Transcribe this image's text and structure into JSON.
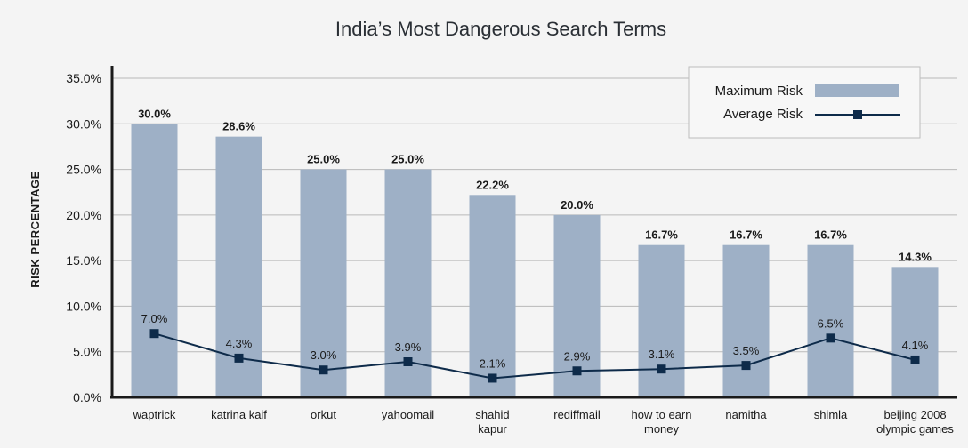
{
  "chart_data": {
    "type": "bar",
    "title": "India’s Most Dangerous Search Terms",
    "xlabel": "",
    "ylabel": "RISK PERCENTAGE",
    "ylim": [
      0,
      35
    ],
    "yticks": [
      "0.0%",
      "5.0%",
      "10.0%",
      "15.0%",
      "20.0%",
      "25.0%",
      "30.0%",
      "35.0%"
    ],
    "grid": true,
    "legend_position": "top-right",
    "categories": [
      [
        "waptrick"
      ],
      [
        "katrina kaif"
      ],
      [
        "orkut"
      ],
      [
        "yahoomail"
      ],
      [
        "shahid",
        "kapur"
      ],
      [
        "rediffmail"
      ],
      [
        "how to earn",
        "money"
      ],
      [
        "namitha"
      ],
      [
        "shimla"
      ],
      [
        "beijing 2008",
        "olympic games"
      ]
    ],
    "series": [
      {
        "name": "Maximum Risk",
        "type": "bar",
        "color": "#9eb0c6",
        "values": [
          30.0,
          28.6,
          25.0,
          25.0,
          22.2,
          20.0,
          16.7,
          16.7,
          16.7,
          14.3
        ],
        "labels": [
          "30.0%",
          "28.6%",
          "25.0%",
          "25.0%",
          "22.2%",
          "20.0%",
          "16.7%",
          "16.7%",
          "16.7%",
          "14.3%"
        ]
      },
      {
        "name": "Average Risk",
        "type": "line",
        "color": "#0e2b4a",
        "values": [
          7.0,
          4.3,
          3.0,
          3.9,
          2.1,
          2.9,
          3.1,
          3.5,
          6.5,
          4.1
        ],
        "labels": [
          "7.0%",
          "4.3%",
          "3.0%",
          "3.9%",
          "2.1%",
          "2.9%",
          "3.1%",
          "3.5%",
          "6.5%",
          "4.1%"
        ]
      }
    ]
  }
}
